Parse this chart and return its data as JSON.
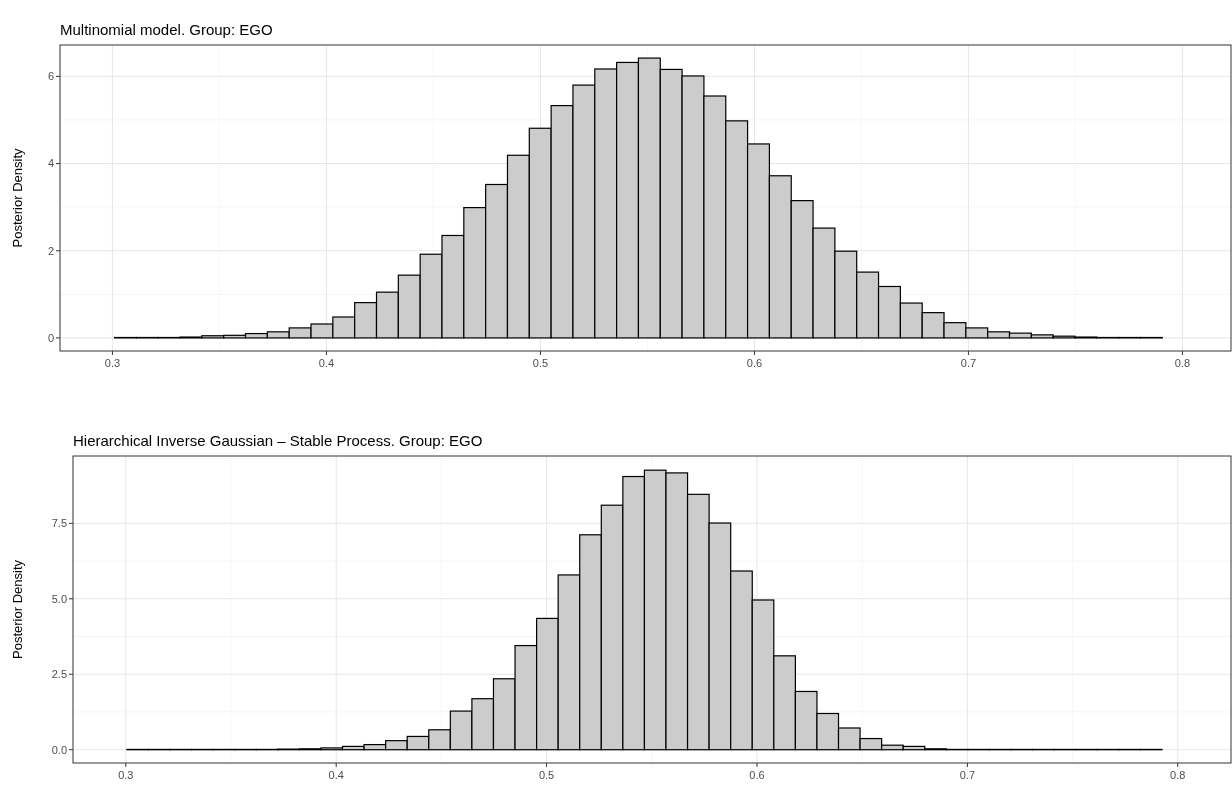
{
  "chart_data": [
    {
      "type": "histogram",
      "title": "Multinomial model. Group: EGO",
      "ylabel": "Posterior Density",
      "color": "#cccccc",
      "grid": true,
      "bins": [
        0.301,
        0.3112,
        0.3214,
        0.3316,
        0.3418,
        0.352,
        0.3622,
        0.3724,
        0.3826,
        0.3928,
        0.403,
        0.4132,
        0.4234,
        0.4336,
        0.4438,
        0.454,
        0.4642,
        0.4744,
        0.4846,
        0.4948,
        0.505,
        0.5152,
        0.5254,
        0.5356,
        0.5458,
        0.556,
        0.5662,
        0.5764,
        0.5866,
        0.5968,
        0.607,
        0.6172,
        0.6274,
        0.6376,
        0.6478,
        0.658,
        0.6682,
        0.6784,
        0.6886,
        0.6988,
        0.709,
        0.7192,
        0.7294,
        0.7396,
        0.7498,
        0.76,
        0.7702,
        0.7804,
        0.7906
      ],
      "values": [
        0.01,
        0.01,
        0.01,
        0.02,
        0.05,
        0.06,
        0.1,
        0.14,
        0.23,
        0.32,
        0.48,
        0.81,
        1.05,
        1.44,
        1.92,
        2.35,
        2.99,
        3.52,
        4.19,
        4.81,
        5.33,
        5.8,
        6.17,
        6.32,
        6.42,
        6.16,
        6.01,
        5.55,
        4.98,
        4.45,
        3.72,
        3.15,
        2.52,
        1.99,
        1.51,
        1.18,
        0.8,
        0.58,
        0.35,
        0.23,
        0.14,
        0.11,
        0.07,
        0.04,
        0.02,
        0.01,
        0.01,
        0.01
      ],
      "xlim": [
        0.2755,
        0.8227
      ],
      "xticks": [
        0.3,
        0.4,
        0.5,
        0.6,
        0.7,
        0.8
      ],
      "ylim": [
        -0.3,
        6.72
      ],
      "yticks": [
        0,
        2,
        4,
        6
      ]
    },
    {
      "type": "histogram",
      "title": "Hierarchical Inverse Gaussian – Stable Process. Group: EGO",
      "ylabel": "Posterior Density",
      "color": "#cccccc",
      "grid": true,
      "bins": [
        0.3005,
        0.31075,
        0.321,
        0.33125,
        0.3415,
        0.35175,
        0.362,
        0.37225,
        0.3825,
        0.39275,
        0.403,
        0.41325,
        0.4235,
        0.43375,
        0.444,
        0.45425,
        0.4645,
        0.47475,
        0.485,
        0.49525,
        0.5055,
        0.51575,
        0.526,
        0.53625,
        0.5465,
        0.55675,
        0.567,
        0.57725,
        0.5875,
        0.59775,
        0.608,
        0.61825,
        0.6285,
        0.63875,
        0.649,
        0.65925,
        0.6695,
        0.67975,
        0.69,
        0.70025,
        0.7105,
        0.72075,
        0.731,
        0.74125,
        0.7515,
        0.76175,
        0.772,
        0.78225,
        0.7925
      ],
      "values": [
        0.01,
        0.01,
        0.01,
        0.01,
        0.01,
        0.01,
        0.01,
        0.02,
        0.03,
        0.06,
        0.11,
        0.17,
        0.3,
        0.44,
        0.66,
        1.28,
        1.69,
        2.35,
        3.45,
        4.35,
        5.79,
        7.12,
        8.1,
        9.05,
        9.26,
        9.17,
        8.46,
        7.51,
        5.92,
        4.96,
        3.11,
        1.93,
        1.2,
        0.72,
        0.37,
        0.15,
        0.11,
        0.03,
        0.01,
        0.01,
        0.01,
        0.01,
        0.01,
        0.01,
        0.01,
        0.01,
        0.01,
        0.01
      ],
      "xlim": [
        0.2749,
        0.8253
      ],
      "xticks": [
        0.3,
        0.4,
        0.5,
        0.6,
        0.7,
        0.8
      ],
      "ylim": [
        -0.44,
        9.73
      ],
      "yticks": [
        {
          "value": 0,
          "label": "0.0"
        },
        {
          "value": 2.5,
          "label": "2.5"
        },
        {
          "value": 5,
          "label": "5.0"
        },
        {
          "value": 7.5,
          "label": "7.5"
        }
      ]
    }
  ]
}
